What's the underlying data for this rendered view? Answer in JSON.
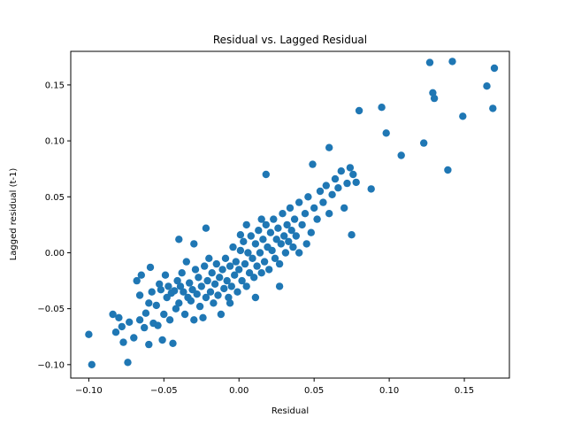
{
  "chart_data": {
    "type": "scatter",
    "title": "Residual vs. Lagged Residual",
    "xlabel": "Residual",
    "ylabel": "Lagged residual (t-1)",
    "xlim": [
      -0.112,
      0.18
    ],
    "ylim": [
      -0.112,
      0.18
    ],
    "xticks": [
      -0.1,
      -0.05,
      0.0,
      0.05,
      0.1,
      0.15
    ],
    "xtick_labels": [
      "−0.10",
      "−0.05",
      "0.00",
      "0.05",
      "0.10",
      "0.15"
    ],
    "yticks": [
      -0.1,
      -0.05,
      0.0,
      0.05,
      0.1,
      0.15
    ],
    "ytick_labels": [
      "−0.10",
      "−0.05",
      "0.00",
      "0.05",
      "0.10",
      "0.15"
    ],
    "grid": false,
    "marker_color": "#1f77b4",
    "points": [
      {
        "x": -0.098,
        "y": -0.1
      },
      {
        "x": -0.1,
        "y": -0.073
      },
      {
        "x": -0.074,
        "y": -0.098
      },
      {
        "x": -0.084,
        "y": -0.055
      },
      {
        "x": -0.082,
        "y": -0.071
      },
      {
        "x": -0.08,
        "y": -0.058
      },
      {
        "x": -0.078,
        "y": -0.066
      },
      {
        "x": -0.077,
        "y": -0.08
      },
      {
        "x": -0.073,
        "y": -0.062
      },
      {
        "x": -0.07,
        "y": -0.076
      },
      {
        "x": -0.068,
        "y": -0.025
      },
      {
        "x": -0.066,
        "y": -0.06
      },
      {
        "x": -0.065,
        "y": -0.02
      },
      {
        "x": -0.063,
        "y": -0.067
      },
      {
        "x": -0.062,
        "y": -0.054
      },
      {
        "x": -0.06,
        "y": -0.082
      },
      {
        "x": -0.059,
        "y": -0.013
      },
      {
        "x": -0.058,
        "y": -0.035
      },
      {
        "x": -0.057,
        "y": -0.063
      },
      {
        "x": -0.055,
        "y": -0.047
      },
      {
        "x": -0.054,
        "y": -0.065
      },
      {
        "x": -0.053,
        "y": -0.028
      },
      {
        "x": -0.052,
        "y": -0.033
      },
      {
        "x": -0.051,
        "y": -0.078
      },
      {
        "x": -0.05,
        "y": -0.055
      },
      {
        "x": -0.049,
        "y": -0.02
      },
      {
        "x": -0.048,
        "y": -0.04
      },
      {
        "x": -0.047,
        "y": -0.03
      },
      {
        "x": -0.046,
        "y": -0.06
      },
      {
        "x": -0.045,
        "y": -0.036
      },
      {
        "x": -0.044,
        "y": -0.081
      },
      {
        "x": -0.043,
        "y": -0.034
      },
      {
        "x": -0.042,
        "y": -0.05
      },
      {
        "x": -0.041,
        "y": -0.025
      },
      {
        "x": -0.04,
        "y": -0.045
      },
      {
        "x": -0.039,
        "y": -0.03
      },
      {
        "x": -0.038,
        "y": -0.018
      },
      {
        "x": -0.037,
        "y": -0.035
      },
      {
        "x": -0.036,
        "y": -0.055
      },
      {
        "x": -0.035,
        "y": -0.008
      },
      {
        "x": -0.034,
        "y": -0.04
      },
      {
        "x": -0.033,
        "y": -0.027
      },
      {
        "x": -0.032,
        "y": -0.043
      },
      {
        "x": -0.031,
        "y": -0.033
      },
      {
        "x": -0.03,
        "y": -0.06
      },
      {
        "x": -0.029,
        "y": -0.015
      },
      {
        "x": -0.028,
        "y": -0.037
      },
      {
        "x": -0.027,
        "y": -0.022
      },
      {
        "x": -0.026,
        "y": -0.048
      },
      {
        "x": -0.025,
        "y": -0.03
      },
      {
        "x": -0.024,
        "y": -0.058
      },
      {
        "x": -0.023,
        "y": -0.012
      },
      {
        "x": -0.022,
        "y": -0.04
      },
      {
        "x": -0.021,
        "y": -0.025
      },
      {
        "x": -0.02,
        "y": -0.005
      },
      {
        "x": -0.019,
        "y": -0.035
      },
      {
        "x": -0.018,
        "y": -0.018
      },
      {
        "x": -0.017,
        "y": -0.045
      },
      {
        "x": -0.016,
        "y": -0.028
      },
      {
        "x": -0.015,
        "y": -0.01
      },
      {
        "x": -0.014,
        "y": -0.038
      },
      {
        "x": -0.013,
        "y": -0.022
      },
      {
        "x": -0.012,
        "y": -0.055
      },
      {
        "x": -0.011,
        "y": -0.015
      },
      {
        "x": -0.01,
        "y": -0.032
      },
      {
        "x": -0.009,
        "y": -0.005
      },
      {
        "x": -0.008,
        "y": -0.025
      },
      {
        "x": -0.007,
        "y": -0.04
      },
      {
        "x": -0.006,
        "y": -0.012
      },
      {
        "x": -0.005,
        "y": -0.03
      },
      {
        "x": -0.004,
        "y": 0.005
      },
      {
        "x": -0.003,
        "y": -0.02
      },
      {
        "x": -0.002,
        "y": -0.008
      },
      {
        "x": -0.001,
        "y": -0.035
      },
      {
        "x": 0.0,
        "y": -0.015
      },
      {
        "x": 0.001,
        "y": 0.002
      },
      {
        "x": 0.002,
        "y": -0.025
      },
      {
        "x": 0.003,
        "y": 0.01
      },
      {
        "x": 0.004,
        "y": -0.01
      },
      {
        "x": 0.005,
        "y": -0.03
      },
      {
        "x": 0.006,
        "y": 0.0
      },
      {
        "x": 0.007,
        "y": -0.018
      },
      {
        "x": 0.008,
        "y": 0.015
      },
      {
        "x": 0.009,
        "y": -0.005
      },
      {
        "x": 0.01,
        "y": -0.022
      },
      {
        "x": 0.011,
        "y": 0.008
      },
      {
        "x": 0.012,
        "y": -0.012
      },
      {
        "x": 0.013,
        "y": 0.02
      },
      {
        "x": 0.014,
        "y": 0.0
      },
      {
        "x": 0.015,
        "y": -0.018
      },
      {
        "x": 0.016,
        "y": 0.012
      },
      {
        "x": 0.017,
        "y": -0.008
      },
      {
        "x": 0.018,
        "y": 0.025
      },
      {
        "x": 0.019,
        "y": 0.005
      },
      {
        "x": 0.02,
        "y": -0.015
      },
      {
        "x": 0.021,
        "y": 0.018
      },
      {
        "x": 0.022,
        "y": 0.002
      },
      {
        "x": 0.023,
        "y": 0.03
      },
      {
        "x": 0.024,
        "y": -0.005
      },
      {
        "x": 0.025,
        "y": 0.012
      },
      {
        "x": 0.026,
        "y": 0.022
      },
      {
        "x": 0.027,
        "y": -0.01
      },
      {
        "x": 0.028,
        "y": 0.008
      },
      {
        "x": 0.029,
        "y": 0.035
      },
      {
        "x": 0.03,
        "y": 0.015
      },
      {
        "x": 0.031,
        "y": 0.0
      },
      {
        "x": 0.032,
        "y": 0.025
      },
      {
        "x": 0.033,
        "y": 0.01
      },
      {
        "x": 0.034,
        "y": 0.04
      },
      {
        "x": 0.035,
        "y": 0.02
      },
      {
        "x": 0.036,
        "y": 0.005
      },
      {
        "x": 0.037,
        "y": 0.03
      },
      {
        "x": 0.038,
        "y": 0.015
      },
      {
        "x": 0.04,
        "y": 0.045
      },
      {
        "x": 0.042,
        "y": 0.025
      },
      {
        "x": 0.044,
        "y": 0.035
      },
      {
        "x": 0.046,
        "y": 0.05
      },
      {
        "x": 0.048,
        "y": 0.018
      },
      {
        "x": 0.05,
        "y": 0.04
      },
      {
        "x": 0.052,
        "y": 0.03
      },
      {
        "x": 0.054,
        "y": 0.055
      },
      {
        "x": 0.056,
        "y": 0.045
      },
      {
        "x": 0.058,
        "y": 0.06
      },
      {
        "x": 0.06,
        "y": 0.035
      },
      {
        "x": 0.062,
        "y": 0.052
      },
      {
        "x": 0.064,
        "y": 0.066
      },
      {
        "x": 0.066,
        "y": 0.058
      },
      {
        "x": 0.068,
        "y": 0.073
      },
      {
        "x": 0.07,
        "y": 0.04
      },
      {
        "x": 0.072,
        "y": 0.062
      },
      {
        "x": 0.074,
        "y": 0.076
      },
      {
        "x": 0.075,
        "y": 0.016
      },
      {
        "x": 0.076,
        "y": 0.07
      },
      {
        "x": 0.078,
        "y": 0.063
      },
      {
        "x": 0.08,
        "y": 0.127
      },
      {
        "x": 0.088,
        "y": 0.057
      },
      {
        "x": 0.095,
        "y": 0.13
      },
      {
        "x": 0.098,
        "y": 0.107
      },
      {
        "x": 0.108,
        "y": 0.087
      },
      {
        "x": 0.123,
        "y": 0.098
      },
      {
        "x": 0.127,
        "y": 0.17
      },
      {
        "x": 0.129,
        "y": 0.143
      },
      {
        "x": 0.13,
        "y": 0.138
      },
      {
        "x": 0.139,
        "y": 0.074
      },
      {
        "x": 0.142,
        "y": 0.171
      },
      {
        "x": 0.149,
        "y": 0.122
      },
      {
        "x": 0.165,
        "y": 0.149
      },
      {
        "x": 0.169,
        "y": 0.129
      },
      {
        "x": 0.17,
        "y": 0.165
      },
      {
        "x": 0.018,
        "y": 0.07
      },
      {
        "x": 0.06,
        "y": 0.094
      },
      {
        "x": 0.049,
        "y": 0.079
      },
      {
        "x": -0.03,
        "y": 0.008
      },
      {
        "x": -0.022,
        "y": 0.022
      },
      {
        "x": -0.04,
        "y": 0.012
      },
      {
        "x": 0.001,
        "y": 0.016
      },
      {
        "x": 0.027,
        "y": -0.03
      },
      {
        "x": 0.04,
        "y": 0.0
      },
      {
        "x": 0.045,
        "y": 0.008
      },
      {
        "x": -0.06,
        "y": -0.045
      },
      {
        "x": -0.066,
        "y": -0.038
      },
      {
        "x": 0.011,
        "y": -0.04
      },
      {
        "x": -0.006,
        "y": -0.045
      },
      {
        "x": 0.005,
        "y": 0.025
      },
      {
        "x": 0.015,
        "y": 0.03
      }
    ]
  }
}
